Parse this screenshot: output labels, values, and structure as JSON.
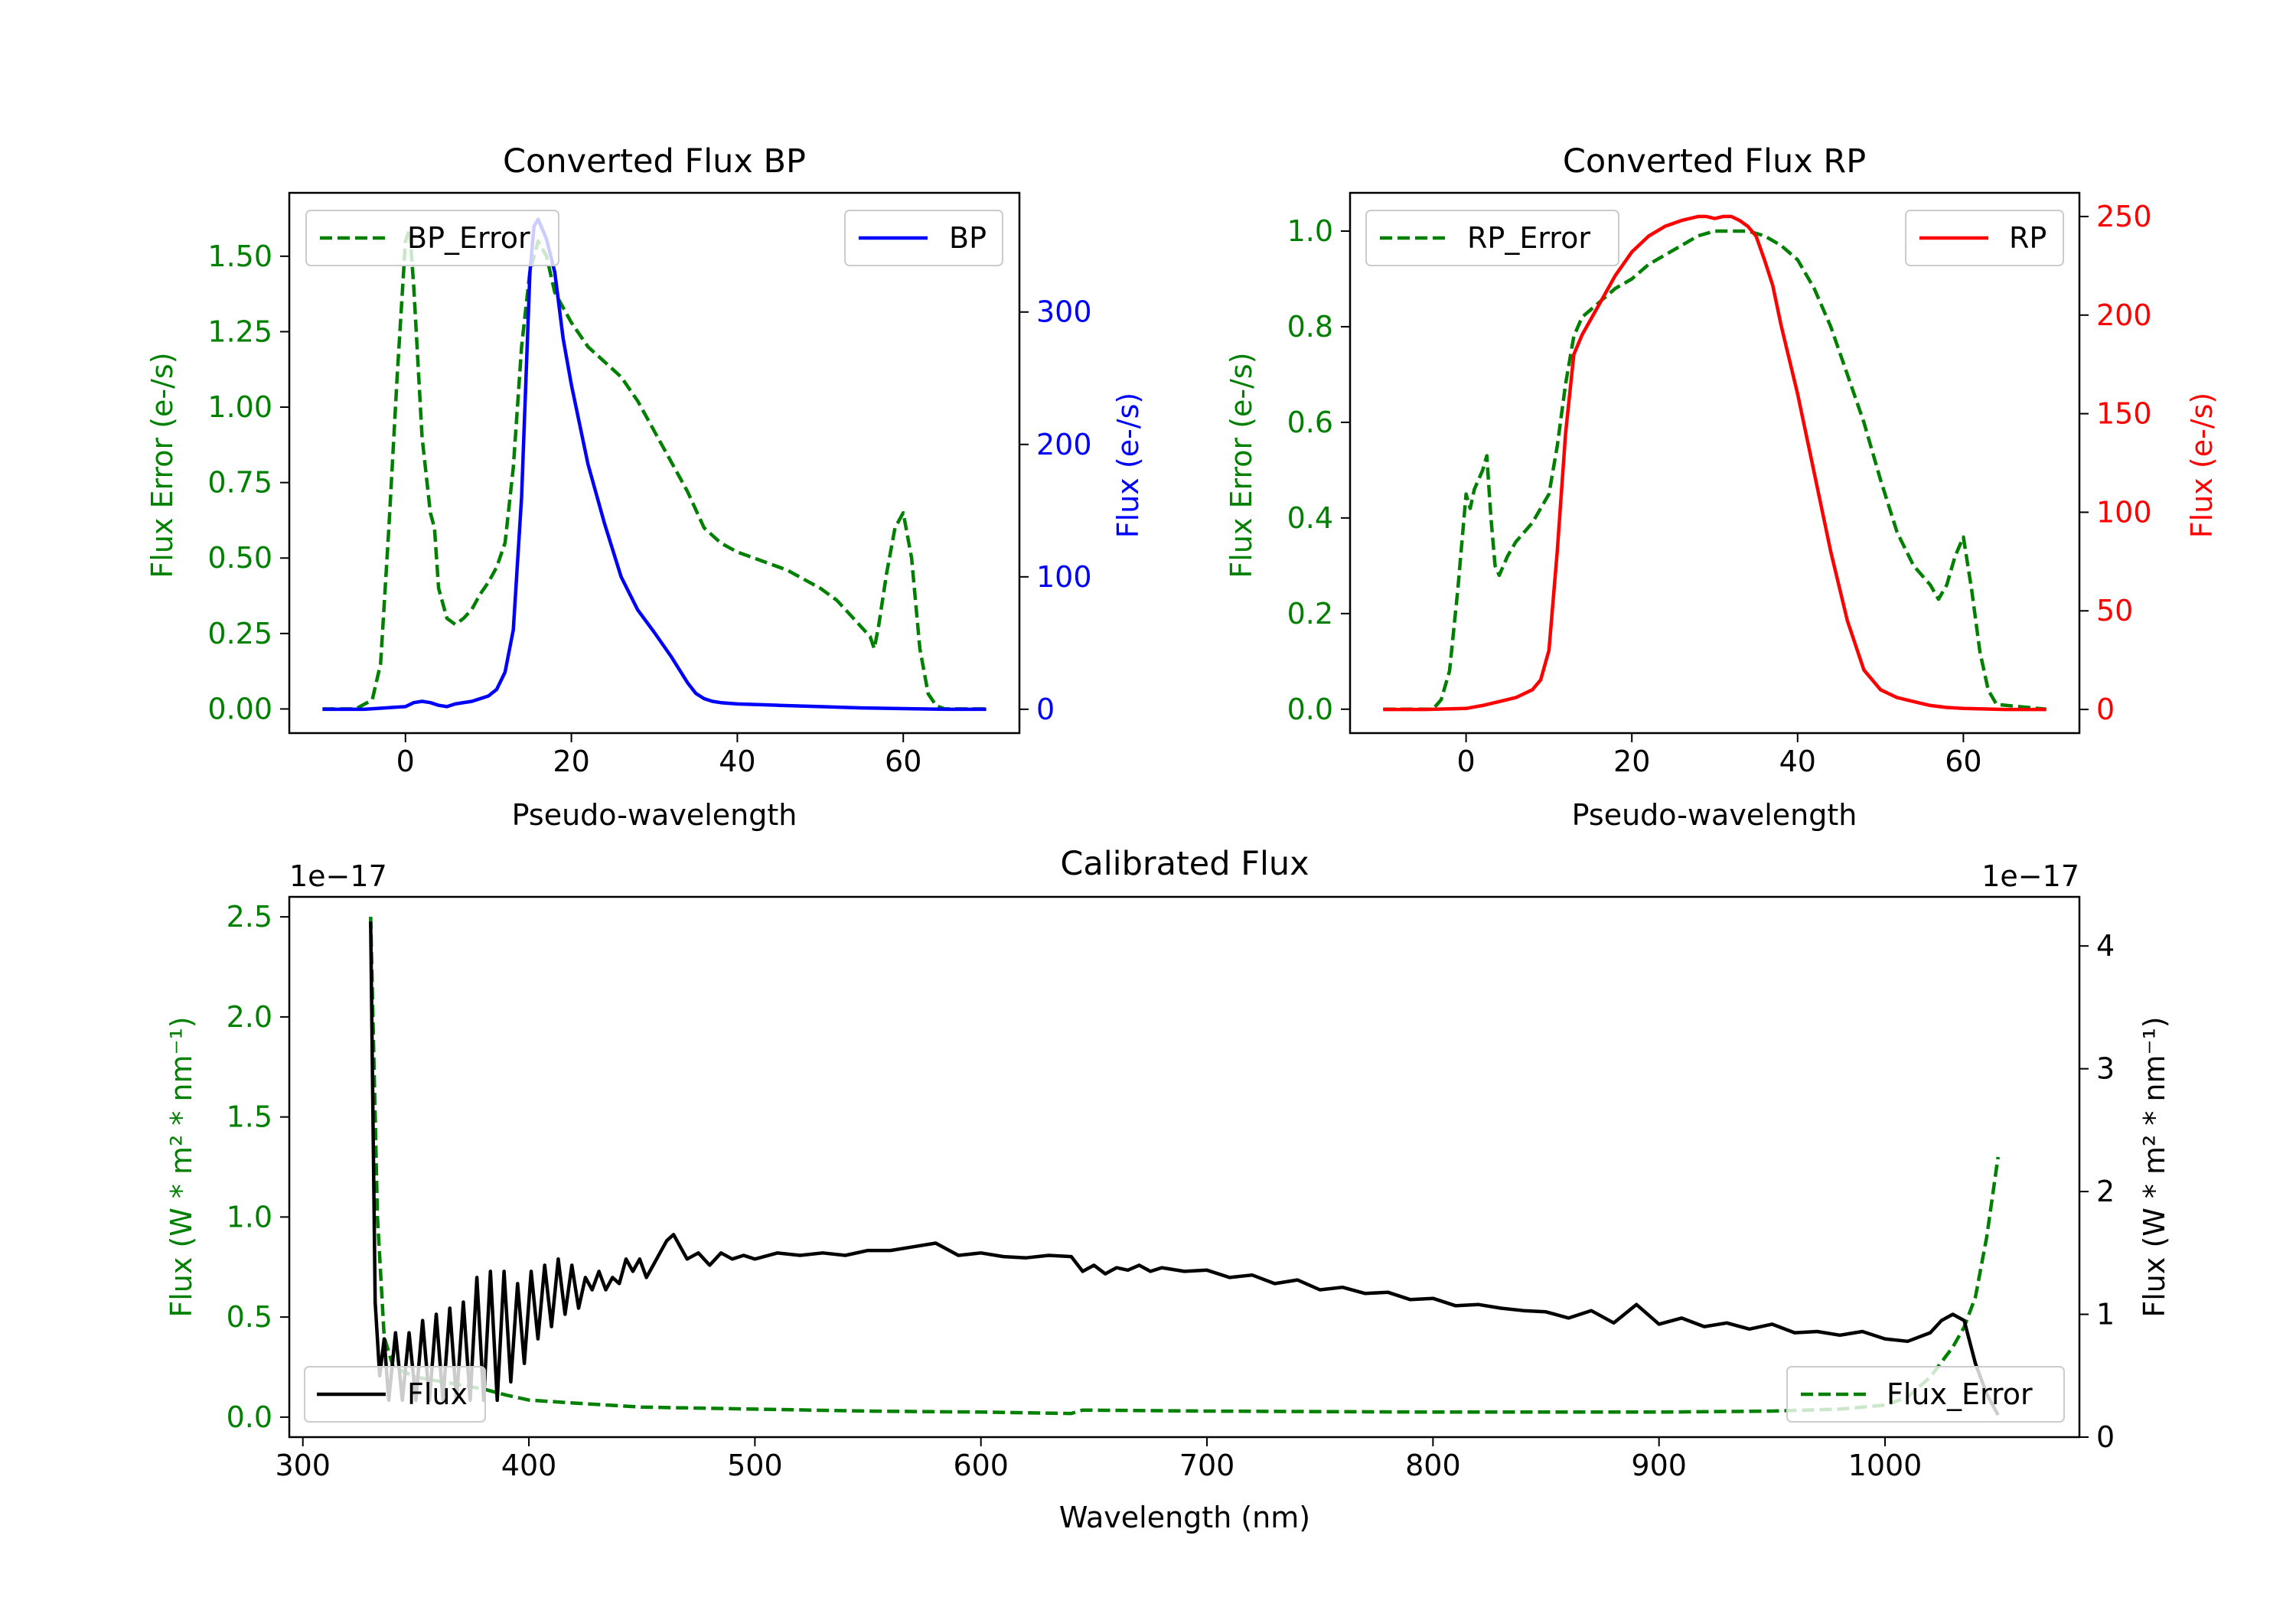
{
  "colors": {
    "green": "#008000",
    "blue": "#0000ff",
    "red": "#ff0000",
    "black": "#000000",
    "legend_border": "#cccccc"
  },
  "chart_data": [
    {
      "id": "bp",
      "type": "line",
      "title": "Converted Flux BP",
      "xlabel": "Pseudo-wavelength",
      "ylabel_left": "Flux Error (e-/s)",
      "ylabel_right": "Flux (e-/s)",
      "xlim": [
        -14,
        74
      ],
      "ylim_left": [
        -0.08,
        1.71
      ],
      "ylim_right": [
        -18,
        390
      ],
      "xticks": [
        0,
        20,
        40,
        60
      ],
      "xtick_labels": [
        "0",
        "20",
        "40",
        "60"
      ],
      "yticks_left": [
        0,
        0.25,
        0.5,
        0.75,
        1.0,
        1.25,
        1.5
      ],
      "ytick_labels_left": [
        "0.00",
        "0.25",
        "0.50",
        "0.75",
        "1.00",
        "1.25",
        "1.50"
      ],
      "yticks_right": [
        0,
        100,
        200,
        300
      ],
      "ytick_labels_right": [
        "0",
        "100",
        "200",
        "300"
      ],
      "series": [
        {
          "name": "BP_Error",
          "axis": "left",
          "color": "#008000",
          "style": "dashed",
          "x": [
            -10,
            -6,
            -4,
            -3,
            -2,
            -1,
            0,
            0.5,
            1,
            2,
            3,
            3.5,
            4,
            5,
            6,
            7,
            8,
            9,
            10,
            11,
            12,
            13,
            14,
            15,
            16,
            17,
            18,
            20,
            22,
            24,
            26,
            28,
            30,
            32,
            34,
            36,
            38,
            40,
            42,
            44,
            46,
            48,
            50,
            52,
            54,
            55,
            56,
            56.5,
            57,
            58,
            59,
            60,
            61,
            62,
            63,
            64,
            65,
            70
          ],
          "y": [
            0,
            0,
            0.03,
            0.15,
            0.6,
            1.1,
            1.55,
            1.59,
            1.4,
            0.9,
            0.65,
            0.6,
            0.4,
            0.3,
            0.28,
            0.3,
            0.33,
            0.38,
            0.42,
            0.47,
            0.55,
            0.8,
            1.2,
            1.45,
            1.55,
            1.5,
            1.38,
            1.28,
            1.2,
            1.15,
            1.1,
            1.02,
            0.92,
            0.82,
            0.72,
            0.6,
            0.55,
            0.52,
            0.5,
            0.48,
            0.46,
            0.43,
            0.4,
            0.36,
            0.3,
            0.27,
            0.24,
            0.2,
            0.27,
            0.45,
            0.6,
            0.65,
            0.5,
            0.2,
            0.05,
            0.01,
            0,
            0
          ]
        },
        {
          "name": "BP",
          "axis": "right",
          "color": "#0000ff",
          "style": "solid",
          "x": [
            -10,
            -5,
            0,
            1,
            2,
            3,
            4,
            5,
            6,
            8,
            10,
            11,
            12,
            13,
            14,
            15,
            15.5,
            16,
            17,
            18,
            19,
            20,
            22,
            24,
            26,
            28,
            30,
            32,
            34,
            35,
            36,
            37,
            38,
            40,
            45,
            50,
            55,
            60,
            65,
            70
          ],
          "y": [
            0,
            0,
            2,
            5,
            6,
            5,
            3,
            2,
            4,
            6,
            10,
            15,
            28,
            60,
            160,
            330,
            365,
            370,
            355,
            330,
            280,
            245,
            185,
            140,
            100,
            75,
            58,
            40,
            20,
            12,
            8,
            6,
            5,
            4,
            3,
            2,
            1,
            0.5,
            0,
            0
          ]
        }
      ],
      "legends": [
        {
          "labels": [
            "BP_Error"
          ],
          "placement": "upper left"
        },
        {
          "labels": [
            "BP"
          ],
          "placement": "upper right"
        }
      ]
    },
    {
      "id": "rp",
      "type": "line",
      "title": "Converted Flux RP",
      "xlabel": "Pseudo-wavelength",
      "ylabel_left": "Flux Error (e-/s)",
      "ylabel_right": "Flux (e-/s)",
      "xlim": [
        -14,
        74
      ],
      "ylim_left": [
        -0.05,
        1.08
      ],
      "ylim_right": [
        -12,
        262
      ],
      "xticks": [
        0,
        20,
        40,
        60
      ],
      "xtick_labels": [
        "0",
        "20",
        "40",
        "60"
      ],
      "yticks_left": [
        0,
        0.2,
        0.4,
        0.6,
        0.8,
        1.0
      ],
      "ytick_labels_left": [
        "0.0",
        "0.2",
        "0.4",
        "0.6",
        "0.8",
        "1.0"
      ],
      "yticks_right": [
        0,
        50,
        100,
        150,
        200,
        250
      ],
      "ytick_labels_right": [
        "0",
        "50",
        "100",
        "150",
        "200",
        "250"
      ],
      "series": [
        {
          "name": "RP_Error",
          "axis": "left",
          "color": "#008000",
          "style": "dashed",
          "x": [
            -10,
            -4,
            -3,
            -2,
            -1,
            0,
            0.5,
            1,
            2,
            2.5,
            3,
            3.5,
            4,
            5,
            6,
            8,
            10,
            11,
            12,
            13,
            14,
            16,
            18,
            20,
            22,
            24,
            26,
            28,
            30,
            32,
            34,
            36,
            38,
            40,
            42,
            44,
            46,
            48,
            50,
            52,
            54,
            56,
            57,
            58,
            59,
            60,
            61,
            62,
            63,
            64,
            70
          ],
          "y": [
            0,
            0,
            0.02,
            0.08,
            0.25,
            0.45,
            0.42,
            0.46,
            0.5,
            0.53,
            0.4,
            0.3,
            0.28,
            0.32,
            0.35,
            0.39,
            0.45,
            0.55,
            0.68,
            0.78,
            0.82,
            0.85,
            0.88,
            0.9,
            0.93,
            0.95,
            0.97,
            0.99,
            1.0,
            1.0,
            1.0,
            0.99,
            0.97,
            0.94,
            0.88,
            0.8,
            0.7,
            0.6,
            0.48,
            0.37,
            0.3,
            0.26,
            0.23,
            0.26,
            0.32,
            0.36,
            0.25,
            0.12,
            0.04,
            0.01,
            0
          ]
        },
        {
          "name": "RP",
          "axis": "right",
          "color": "#ff0000",
          "style": "solid",
          "x": [
            -10,
            -5,
            0,
            2,
            4,
            6,
            8,
            9,
            10,
            11,
            12,
            13,
            14,
            16,
            18,
            20,
            22,
            24,
            26,
            28,
            29,
            30,
            31,
            32,
            33,
            34,
            35,
            36,
            37,
            38,
            40,
            42,
            44,
            46,
            48,
            50,
            52,
            54,
            56,
            58,
            60,
            65,
            70
          ],
          "y": [
            0,
            0,
            0.5,
            2,
            4,
            6,
            10,
            15,
            30,
            80,
            140,
            180,
            190,
            205,
            220,
            232,
            240,
            245,
            248,
            250,
            250,
            249,
            250,
            250,
            248,
            245,
            240,
            228,
            215,
            195,
            160,
            120,
            80,
            45,
            20,
            10,
            6,
            4,
            2,
            1,
            0.5,
            0,
            0
          ]
        }
      ],
      "legends": [
        {
          "labels": [
            "RP_Error"
          ],
          "placement": "upper left"
        },
        {
          "labels": [
            "RP"
          ],
          "placement": "upper right"
        }
      ]
    },
    {
      "id": "cal",
      "type": "line",
      "title": "Calibrated Flux",
      "xlabel": "Wavelength (nm)",
      "ylabel_left": "Flux (W * m² * nm⁻¹)",
      "ylabel_right": "Flux (W * m² * nm⁻¹)",
      "offset_left": "1e−17",
      "offset_right": "1e−17",
      "xlim": [
        294,
        1086
      ],
      "ylim_left": [
        -0.1,
        2.6
      ],
      "ylim_right": [
        0,
        4.4
      ],
      "xticks": [
        300,
        400,
        500,
        600,
        700,
        800,
        900,
        1000
      ],
      "xtick_labels": [
        "300",
        "400",
        "500",
        "600",
        "700",
        "800",
        "900",
        "1000"
      ],
      "yticks_left": [
        0,
        0.5,
        1.0,
        1.5,
        2.0,
        2.5
      ],
      "ytick_labels_left": [
        "0.0",
        "0.5",
        "1.0",
        "1.5",
        "2.0",
        "2.5"
      ],
      "yticks_right": [
        0,
        1,
        2,
        3,
        4
      ],
      "ytick_labels_right": [
        "0",
        "1",
        "2",
        "3",
        "4"
      ],
      "series": [
        {
          "name": "Flux_Error",
          "axis": "left",
          "color": "#008000",
          "style": "dashed",
          "x": [
            330,
            333,
            336,
            340,
            350,
            360,
            370,
            380,
            390,
            400,
            420,
            450,
            500,
            550,
            600,
            640,
            645,
            700,
            800,
            900,
            950,
            980,
            1000,
            1010,
            1020,
            1030,
            1035,
            1040,
            1045,
            1050
          ],
          "y": [
            2.5,
            1.0,
            0.4,
            0.25,
            0.2,
            0.18,
            0.16,
            0.14,
            0.11,
            0.085,
            0.07,
            0.05,
            0.04,
            0.03,
            0.025,
            0.018,
            0.035,
            0.03,
            0.025,
            0.025,
            0.03,
            0.04,
            0.06,
            0.1,
            0.2,
            0.35,
            0.45,
            0.6,
            0.9,
            1.3
          ]
        },
        {
          "name": "Flux",
          "axis": "right",
          "color": "#000000",
          "style": "solid",
          "x": [
            330,
            332,
            334,
            336,
            338,
            341,
            344,
            347,
            350,
            353,
            356,
            359,
            362,
            365,
            368,
            371,
            374,
            377,
            380,
            383,
            386,
            389,
            392,
            395,
            398,
            401,
            404,
            407,
            410,
            413,
            416,
            419,
            422,
            425,
            428,
            431,
            434,
            437,
            440,
            443,
            446,
            449,
            452,
            455,
            458,
            461,
            464,
            467,
            470,
            475,
            480,
            485,
            490,
            495,
            500,
            510,
            520,
            530,
            540,
            550,
            560,
            570,
            580,
            590,
            600,
            610,
            620,
            630,
            640,
            645,
            650,
            655,
            660,
            665,
            670,
            675,
            680,
            690,
            700,
            710,
            720,
            730,
            740,
            750,
            760,
            770,
            780,
            790,
            800,
            810,
            820,
            830,
            840,
            850,
            860,
            870,
            880,
            890,
            900,
            910,
            920,
            930,
            940,
            950,
            960,
            970,
            980,
            990,
            1000,
            1010,
            1020,
            1025,
            1030,
            1035,
            1040,
            1045,
            1050
          ],
          "y": [
            4.2,
            1.1,
            0.5,
            0.8,
            0.3,
            0.85,
            0.3,
            0.85,
            0.3,
            0.95,
            0.3,
            1.0,
            0.3,
            1.05,
            0.3,
            1.1,
            0.3,
            1.3,
            0.3,
            1.35,
            0.3,
            1.35,
            0.45,
            1.25,
            0.6,
            1.35,
            0.8,
            1.4,
            0.9,
            1.45,
            1.0,
            1.4,
            1.05,
            1.3,
            1.2,
            1.35,
            1.2,
            1.3,
            1.25,
            1.45,
            1.35,
            1.45,
            1.3,
            1.4,
            1.5,
            1.6,
            1.65,
            1.55,
            1.45,
            1.5,
            1.4,
            1.5,
            1.45,
            1.48,
            1.45,
            1.5,
            1.48,
            1.5,
            1.48,
            1.52,
            1.52,
            1.55,
            1.58,
            1.48,
            1.5,
            1.47,
            1.46,
            1.48,
            1.47,
            1.35,
            1.4,
            1.33,
            1.38,
            1.36,
            1.4,
            1.35,
            1.38,
            1.35,
            1.36,
            1.3,
            1.32,
            1.25,
            1.28,
            1.2,
            1.22,
            1.17,
            1.18,
            1.12,
            1.13,
            1.07,
            1.08,
            1.05,
            1.03,
            1.02,
            0.97,
            1.03,
            0.93,
            1.08,
            0.92,
            0.97,
            0.9,
            0.93,
            0.88,
            0.92,
            0.85,
            0.86,
            0.83,
            0.86,
            0.8,
            0.78,
            0.85,
            0.95,
            1.0,
            0.95,
            0.6,
            0.35,
            0.18
          ]
        }
      ],
      "legends": [
        {
          "labels": [
            "Flux"
          ],
          "placement": "lower left"
        },
        {
          "labels": [
            "Flux_Error"
          ],
          "placement": "lower right"
        }
      ]
    }
  ]
}
